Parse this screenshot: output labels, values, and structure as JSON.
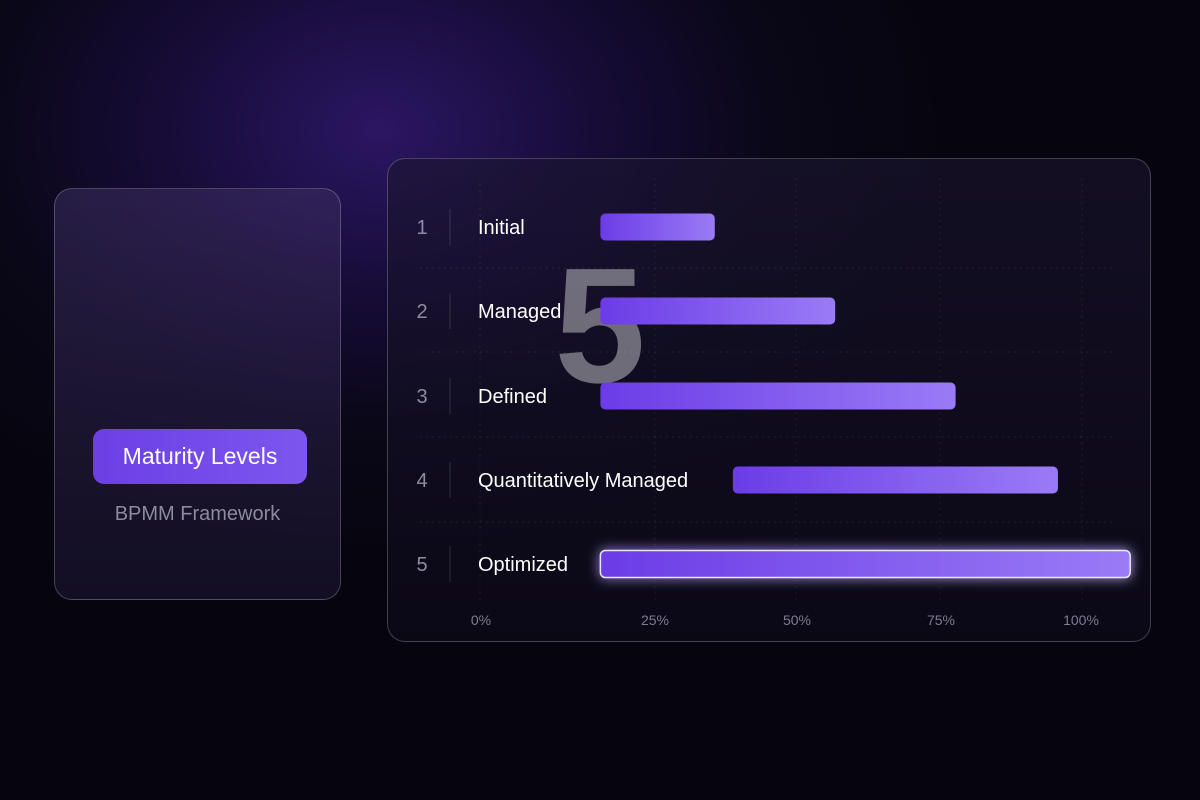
{
  "summary_card": {
    "number": "5",
    "badge": "Maturity Levels",
    "subtitle": "BPMM Framework"
  },
  "colors": {
    "bar_start": "#6b3ce6",
    "bar_end": "#9a7bf6",
    "highlight_glow": "#a07cff",
    "level_number": "#8e8ca0",
    "axis_tick": "#7e7c8e"
  },
  "chart_data": {
    "type": "bar",
    "orientation": "horizontal",
    "title": "",
    "xlabel": "",
    "ylabel": "",
    "xlim": [
      0,
      100
    ],
    "x_ticks": [
      "0%",
      "25%",
      "50%",
      "75%",
      "100%"
    ],
    "grid": true,
    "categories": [
      "Initial",
      "Managed",
      "Defined",
      "Quantitatively Managed",
      "Optimized"
    ],
    "level_numbers": [
      "1",
      "2",
      "3",
      "4",
      "5"
    ],
    "bar_start": [
      20,
      20,
      20,
      42,
      20
    ],
    "bar_end": [
      39,
      59,
      79,
      96,
      108
    ],
    "highlighted": "Optimized"
  }
}
